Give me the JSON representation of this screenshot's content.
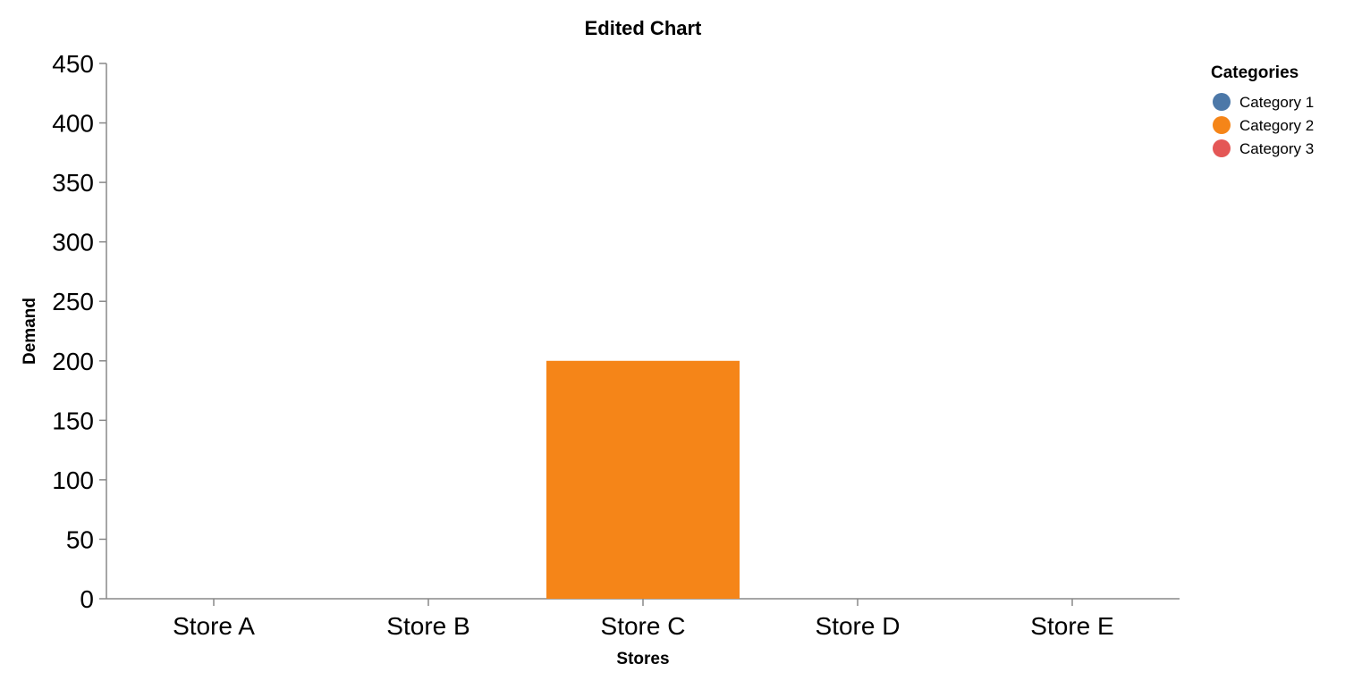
{
  "chart_data": {
    "type": "bar",
    "title": "Edited Chart",
    "xlabel": "Stores",
    "ylabel": "Demand",
    "categories": [
      "Store A",
      "Store B",
      "Store C",
      "Store D",
      "Store E"
    ],
    "ylim": [
      0,
      450
    ],
    "yticks": [
      0,
      50,
      100,
      150,
      200,
      250,
      300,
      350,
      400,
      450
    ],
    "grid": false,
    "legend": {
      "title": "Categories",
      "placement": "top-right",
      "entries": [
        {
          "label": "Category 1",
          "color": "#4c78a8"
        },
        {
          "label": "Category 2",
          "color": "#f58518"
        },
        {
          "label": "Category 3",
          "color": "#e45756"
        }
      ]
    },
    "bars": [
      {
        "category": "Store C",
        "series": "Category 2",
        "value": 200
      }
    ]
  }
}
